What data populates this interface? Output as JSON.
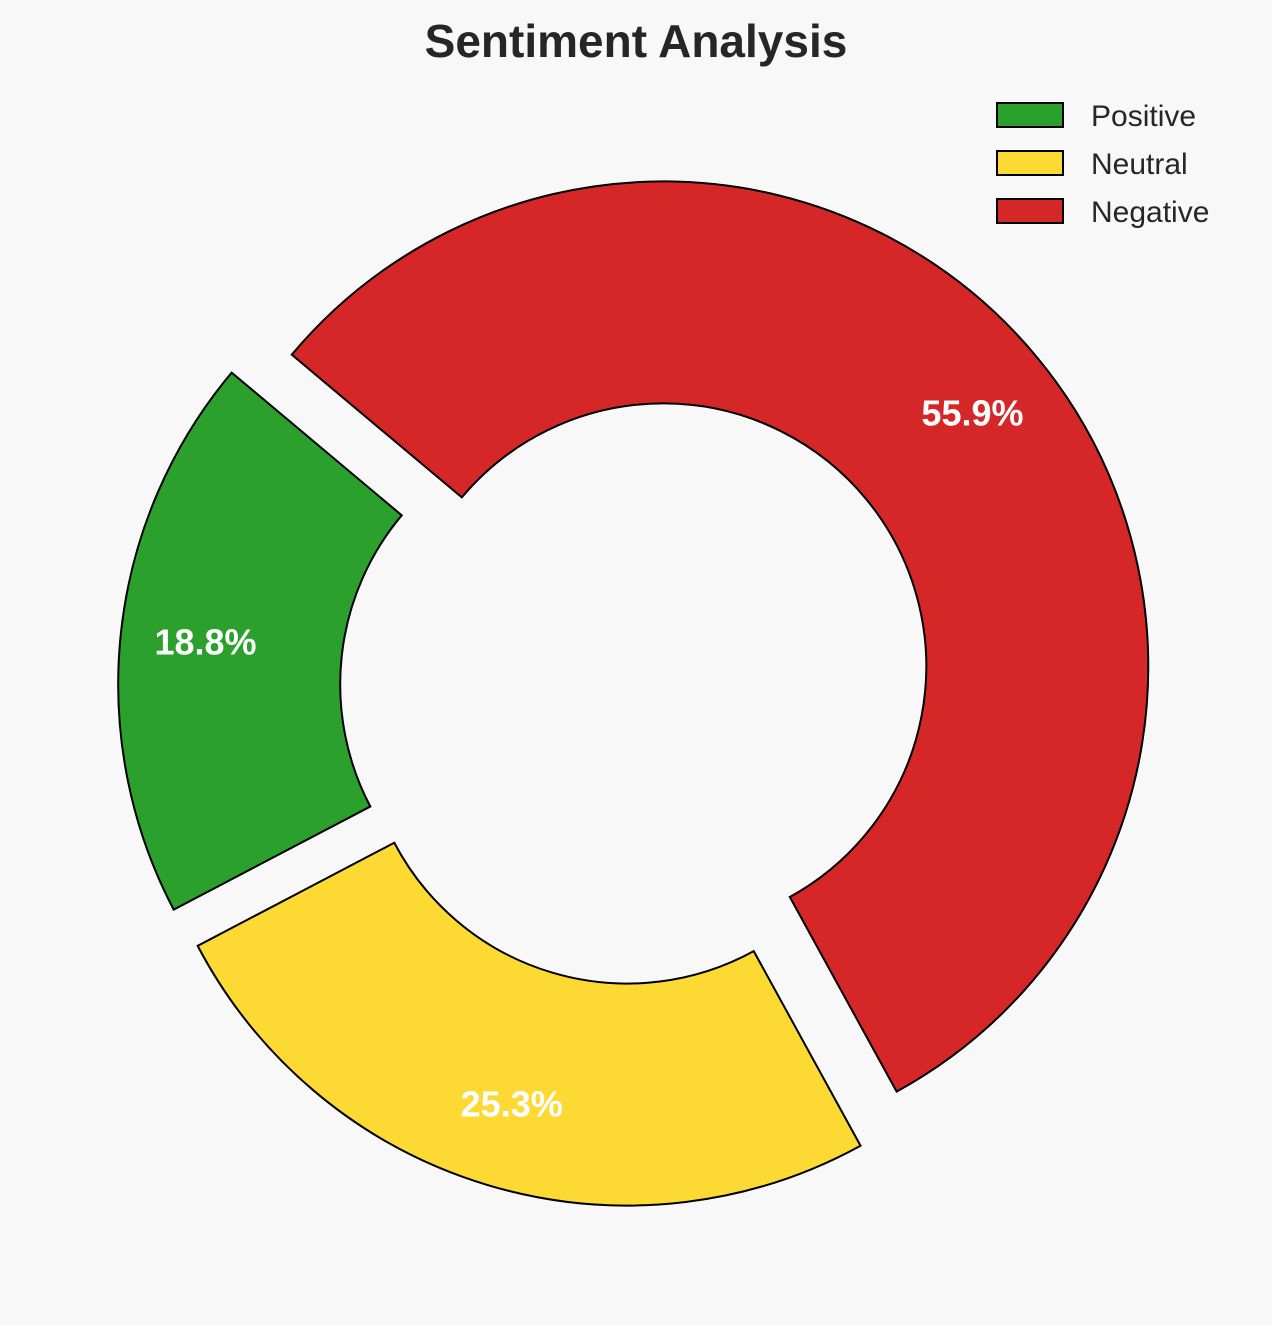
{
  "chart_data": {
    "type": "pie",
    "variant": "donut",
    "title": "Sentiment Analysis",
    "categories": [
      "Positive",
      "Neutral",
      "Negative"
    ],
    "values": [
      18.8,
      25.3,
      55.9
    ],
    "labels": [
      "18.8%",
      "25.3%",
      "55.9%"
    ],
    "colors": [
      "#2ca02c",
      "#fdd933",
      "#d62728"
    ],
    "exploded": true,
    "start_angle_deg": 140,
    "direction": "counterclockwise",
    "legend": {
      "placement": "top-right",
      "entries": [
        "Positive",
        "Neutral",
        "Negative"
      ]
    }
  }
}
